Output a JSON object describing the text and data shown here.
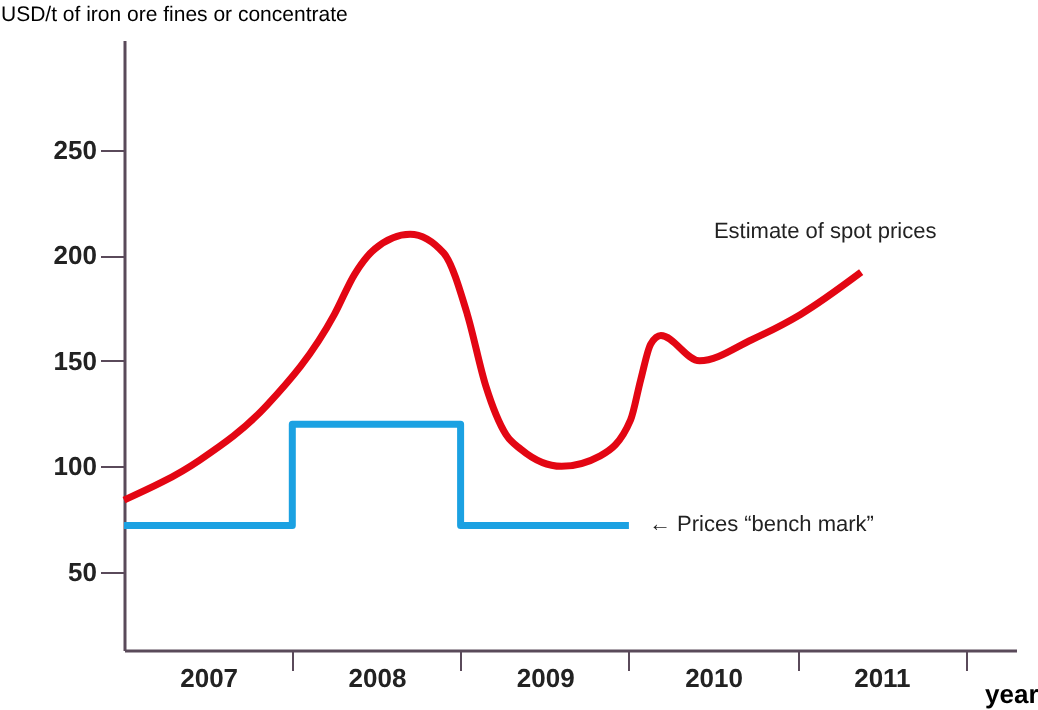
{
  "chart_data": {
    "type": "line",
    "ylabel": "USD/t of iron ore fines or concentrate",
    "xlabel": "year",
    "xlim": [
      2007,
      2012.3
    ],
    "xticks": [
      {
        "value": 2007.5,
        "label": "2007"
      },
      {
        "value": 2008,
        "label": null
      },
      {
        "value": 2008.5,
        "label": "2008"
      },
      {
        "value": 2009,
        "label": null
      },
      {
        "value": 2009.5,
        "label": "2009"
      },
      {
        "value": 2010,
        "label": null
      },
      {
        "value": 2010.5,
        "label": "2010"
      },
      {
        "value": 2011,
        "label": null
      },
      {
        "value": 2011.5,
        "label": "2011"
      },
      {
        "value": 2012,
        "label": null
      }
    ],
    "ylim": [
      13,
      302
    ],
    "yticks": [
      50,
      100,
      150,
      200,
      250
    ],
    "grid": false,
    "series": [
      {
        "name": "Estimate of spot prices",
        "color": "#e30613",
        "x": [
          2007.0,
          2007.45,
          2007.85,
          2008.25,
          2008.37,
          2008.49,
          2008.7,
          2008.9,
          2009.04,
          2009.15,
          2009.27,
          2009.36,
          2009.6,
          2009.83,
          2010.01,
          2010.07,
          2010.13,
          2010.19,
          2010.42,
          2010.73,
          2011.02,
          2011.38
        ],
        "values": [
          84,
          103,
          129,
          172,
          191,
          203,
          210,
          201,
          172,
          138,
          115,
          108,
          100,
          105,
          122,
          141,
          158,
          162,
          150,
          160,
          172,
          192
        ]
      },
      {
        "name": "← Prices “bench mark”",
        "type": "step",
        "color": "#1ba1e2",
        "x": [
          2007,
          2008,
          2009,
          2010
        ],
        "values": [
          72,
          120,
          72,
          72
        ]
      }
    ]
  }
}
